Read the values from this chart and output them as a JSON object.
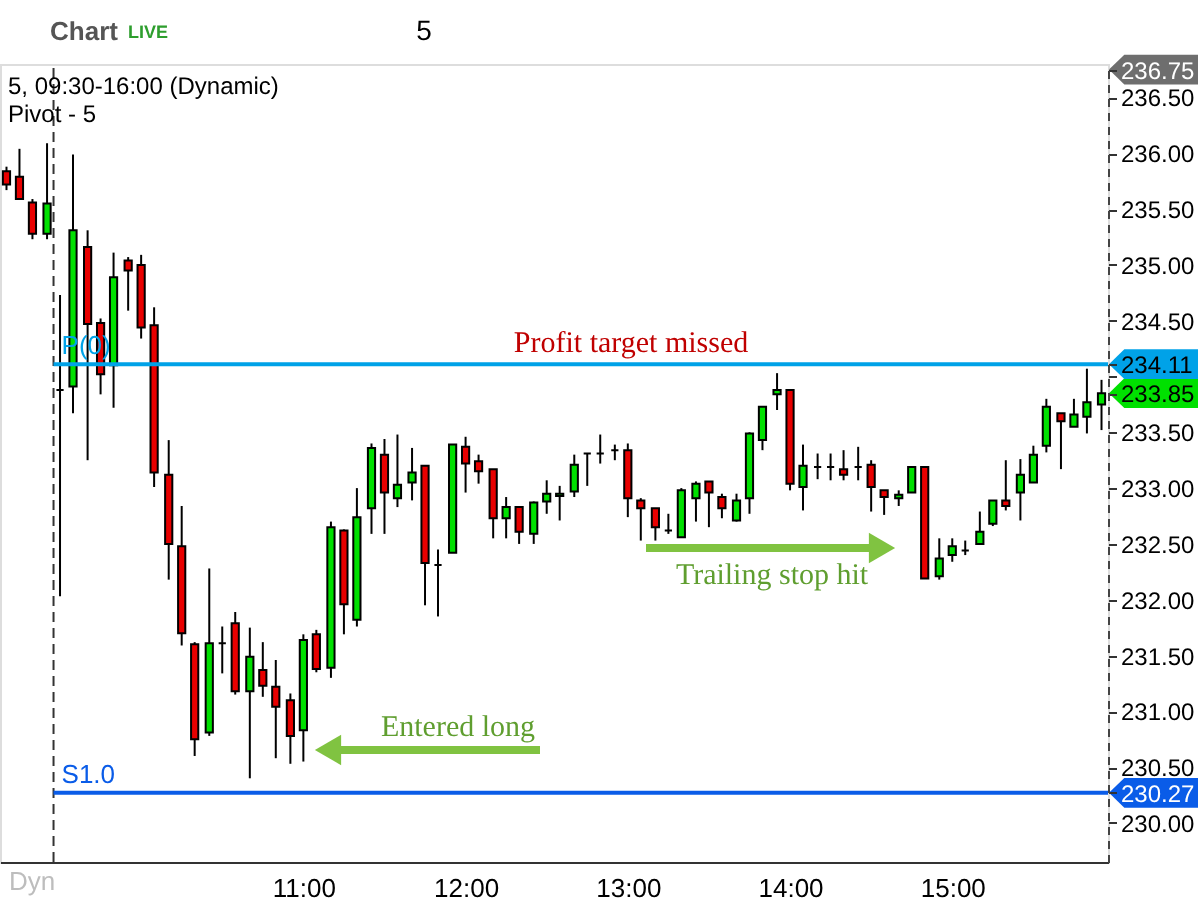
{
  "chart_data": {
    "type": "candlestick",
    "title": "5, 09:30-16:00 (Dynamic)",
    "subtitle": "Pivot - 5",
    "x": [
      9.17,
      9.25,
      9.33,
      9.42,
      9.5,
      9.58,
      9.67,
      9.75,
      9.83,
      9.92,
      10,
      10.08,
      10.17,
      10.25,
      10.33,
      10.42,
      10.5,
      10.58,
      10.67,
      10.75,
      10.83,
      10.92,
      11,
      11.08,
      11.17,
      11.25,
      11.33,
      11.42,
      11.5,
      11.58,
      11.67,
      11.75,
      11.83,
      11.92,
      12,
      12.08,
      12.17,
      12.25,
      12.33,
      12.42,
      12.5,
      12.58,
      12.67,
      12.75,
      12.83,
      12.92,
      13,
      13.08,
      13.17,
      13.25,
      13.33,
      13.42,
      13.5,
      13.58,
      13.67,
      13.75,
      13.83,
      13.92,
      14,
      14.08,
      14.17,
      14.25,
      14.33,
      14.42,
      14.5,
      14.58,
      14.67,
      14.75,
      14.83,
      14.92,
      15,
      15.08,
      15.17,
      15.25,
      15.33,
      15.42,
      15.5,
      15.58,
      15.67,
      15.75,
      15.83,
      15.92
    ],
    "ohlc": [
      [
        235.84,
        235.88,
        235.67,
        235.72
      ],
      [
        235.79,
        236.04,
        235.59,
        235.59
      ],
      [
        235.56,
        235.59,
        235.23,
        235.28
      ],
      [
        235.28,
        236.09,
        235.23,
        235.55
      ],
      [
        233.88,
        234.73,
        232.03,
        233.88
      ],
      [
        233.91,
        235.99,
        233.67,
        235.31
      ],
      [
        235.16,
        235.31,
        233.25,
        234.47
      ],
      [
        234.48,
        234.52,
        233.84,
        234.02
      ],
      [
        234.1,
        235.11,
        233.72,
        234.89
      ],
      [
        235.04,
        235.07,
        234.59,
        234.95
      ],
      [
        235.0,
        235.09,
        234.34,
        234.44
      ],
      [
        234.46,
        234.62,
        233.01,
        233.14
      ],
      [
        233.12,
        233.43,
        232.18,
        232.5
      ],
      [
        232.48,
        232.84,
        231.59,
        231.7
      ],
      [
        231.6,
        231.62,
        230.6,
        230.75
      ],
      [
        230.81,
        232.28,
        230.78,
        231.61
      ],
      [
        231.61,
        231.76,
        231.34,
        231.61
      ],
      [
        231.79,
        231.89,
        231.15,
        231.18
      ],
      [
        231.18,
        231.75,
        230.4,
        231.49
      ],
      [
        231.37,
        231.62,
        231.13,
        231.23
      ],
      [
        231.22,
        231.46,
        230.58,
        231.04
      ],
      [
        231.1,
        231.16,
        230.53,
        230.78
      ],
      [
        230.83,
        231.69,
        230.55,
        231.64
      ],
      [
        231.69,
        231.73,
        231.35,
        231.38
      ],
      [
        231.39,
        232.7,
        231.3,
        232.65
      ],
      [
        232.62,
        232.63,
        231.69,
        231.96
      ],
      [
        231.82,
        233.0,
        231.76,
        232.74
      ],
      [
        232.82,
        233.4,
        232.59,
        233.36
      ],
      [
        233.3,
        233.44,
        232.59,
        232.96
      ],
      [
        232.91,
        233.48,
        232.83,
        233.03
      ],
      [
        233.05,
        233.36,
        232.89,
        233.14
      ],
      [
        233.2,
        233.2,
        231.95,
        232.33
      ],
      [
        232.31,
        232.45,
        231.85,
        232.31
      ],
      [
        232.42,
        233.39,
        232.42,
        233.39
      ],
      [
        233.37,
        233.46,
        232.96,
        233.22
      ],
      [
        233.24,
        233.3,
        233.04,
        233.15
      ],
      [
        233.17,
        233.17,
        232.55,
        232.73
      ],
      [
        232.73,
        232.92,
        232.55,
        232.83
      ],
      [
        232.83,
        232.83,
        232.5,
        232.61
      ],
      [
        232.59,
        232.88,
        232.5,
        232.87
      ],
      [
        232.88,
        233.07,
        232.77,
        232.95
      ],
      [
        232.93,
        233.02,
        232.71,
        232.95
      ],
      [
        232.97,
        233.3,
        232.92,
        233.21
      ],
      [
        233.31,
        233.31,
        233.02,
        233.31
      ],
      [
        233.31,
        233.48,
        233.22,
        233.31
      ],
      [
        233.34,
        233.39,
        233.25,
        233.34
      ],
      [
        233.34,
        233.4,
        232.74,
        232.91
      ],
      [
        232.89,
        232.91,
        232.53,
        232.82
      ],
      [
        232.82,
        232.82,
        232.53,
        232.65
      ],
      [
        232.62,
        232.77,
        232.59,
        232.62
      ],
      [
        232.56,
        233.0,
        232.56,
        232.98
      ],
      [
        232.91,
        233.06,
        232.7,
        233.04
      ],
      [
        233.06,
        233.06,
        232.65,
        232.96
      ],
      [
        232.92,
        232.95,
        232.73,
        232.82
      ],
      [
        232.71,
        232.95,
        232.7,
        232.89
      ],
      [
        232.91,
        233.5,
        232.77,
        233.49
      ],
      [
        233.43,
        233.73,
        233.34,
        233.73
      ],
      [
        233.84,
        234.03,
        233.7,
        233.88
      ],
      [
        233.88,
        233.88,
        232.98,
        233.04
      ],
      [
        233.01,
        233.39,
        232.8,
        233.2
      ],
      [
        233.19,
        233.31,
        233.08,
        233.19
      ],
      [
        233.19,
        233.31,
        233.07,
        233.19
      ],
      [
        233.17,
        233.34,
        233.07,
        233.12
      ],
      [
        233.19,
        233.37,
        233.07,
        233.19
      ],
      [
        233.21,
        233.25,
        232.79,
        233.01
      ],
      [
        232.98,
        232.98,
        232.76,
        232.92
      ],
      [
        232.91,
        232.98,
        232.84,
        232.94
      ],
      [
        232.96,
        233.19,
        232.96,
        233.19
      ],
      [
        233.19,
        233.19,
        232.19,
        232.19
      ],
      [
        232.21,
        232.55,
        232.18,
        232.37
      ],
      [
        232.4,
        232.55,
        232.34,
        232.48
      ],
      [
        232.44,
        232.53,
        232.4,
        232.44
      ],
      [
        232.5,
        232.79,
        232.5,
        232.61
      ],
      [
        232.68,
        232.89,
        232.66,
        232.89
      ],
      [
        232.89,
        233.25,
        232.8,
        232.84
      ],
      [
        232.96,
        233.26,
        232.71,
        233.12
      ],
      [
        233.05,
        233.38,
        233.05,
        233.3
      ],
      [
        233.38,
        233.8,
        233.32,
        233.73
      ],
      [
        233.67,
        233.67,
        233.17,
        233.6
      ],
      [
        233.55,
        233.8,
        233.55,
        233.66
      ],
      [
        233.64,
        234.07,
        233.49,
        233.77
      ],
      [
        233.75,
        233.97,
        233.52,
        233.85
      ]
    ],
    "colors": [
      "#e80000",
      "#e80000",
      "#e80000",
      "#00e000",
      "#000000",
      "#00e000",
      "#e80000",
      "#e80000",
      "#00e000",
      "#e80000",
      "#e80000",
      "#e80000",
      "#e80000",
      "#e80000",
      "#e80000",
      "#00e000",
      "#000000",
      "#e80000",
      "#00e000",
      "#e80000",
      "#e80000",
      "#e80000",
      "#00e000",
      "#e80000",
      "#00e000",
      "#e80000",
      "#00e000",
      "#00e000",
      "#e80000",
      "#00e000",
      "#00e000",
      "#e80000",
      "#000000",
      "#00e000",
      "#e80000",
      "#e80000",
      "#e80000",
      "#00e000",
      "#e80000",
      "#00e000",
      "#00e000",
      "#00e000",
      "#00e000",
      "#000000",
      "#000000",
      "#000000",
      "#e80000",
      "#e80000",
      "#e80000",
      "#000000",
      "#00e000",
      "#00e000",
      "#e80000",
      "#e80000",
      "#00e000",
      "#00e000",
      "#00e000",
      "#00e000",
      "#e80000",
      "#00e000",
      "#000000",
      "#000000",
      "#e80000",
      "#000000",
      "#e80000",
      "#e80000",
      "#00e000",
      "#00e000",
      "#e80000",
      "#00e000",
      "#00e000",
      "#000000",
      "#00e000",
      "#00e000",
      "#e80000",
      "#00e000",
      "#00e000",
      "#00e000",
      "#e80000",
      "#00e000",
      "#00e000",
      "#00e000"
    ],
    "xlim": [
      9.13,
      15.96
    ],
    "xticks": [
      {
        "value": 11,
        "label": "11:00"
      },
      {
        "value": 12,
        "label": "12:00"
      },
      {
        "value": 13,
        "label": "13:00"
      },
      {
        "value": 14,
        "label": "14:00"
      },
      {
        "value": 15,
        "label": "15:00"
      }
    ],
    "ylim": [
      229.65,
      236.8
    ],
    "yticks": [
      {
        "value": 230,
        "label": "230.00"
      },
      {
        "value": 230.27,
        "label": "230.27"
      },
      {
        "value": 230.5,
        "label": "230.50"
      },
      {
        "value": 231,
        "label": "231.00"
      },
      {
        "value": 231.5,
        "label": "231.50"
      },
      {
        "value": 232,
        "label": "232.00"
      },
      {
        "value": 232.5,
        "label": "232.50"
      },
      {
        "value": 233,
        "label": "233.00"
      },
      {
        "value": 233.5,
        "label": "233.50"
      },
      {
        "value": 233.85,
        "label": "233.85"
      },
      {
        "value": 234,
        "label": null
      },
      {
        "value": 234.11,
        "label": "234.11"
      },
      {
        "value": 234.5,
        "label": "234.50"
      },
      {
        "value": 235,
        "label": "235.00"
      },
      {
        "value": 235.5,
        "label": "235.50"
      },
      {
        "value": 236,
        "label": "236.00"
      },
      {
        "value": 236.5,
        "label": "236.50"
      },
      {
        "value": 236.75,
        "label": "236.75"
      }
    ],
    "ref_lines": [
      {
        "axis": "x",
        "value": 9.46,
        "color": "#333333",
        "line_style": "dashed"
      },
      {
        "axis": "y",
        "value": 234.11,
        "label": "P(0)",
        "color": "#00a2e8"
      },
      {
        "axis": "y",
        "value": 230.27,
        "label": "S1.0",
        "color": "#0a5ce8"
      }
    ],
    "annotations": [
      "Chart",
      "LIVE",
      "5",
      "Dyn",
      "Entered long",
      "Trailing stop hit",
      {
        "text": "Profit target missed",
        "x": 13.02,
        "y": 234.11
      }
    ]
  }
}
